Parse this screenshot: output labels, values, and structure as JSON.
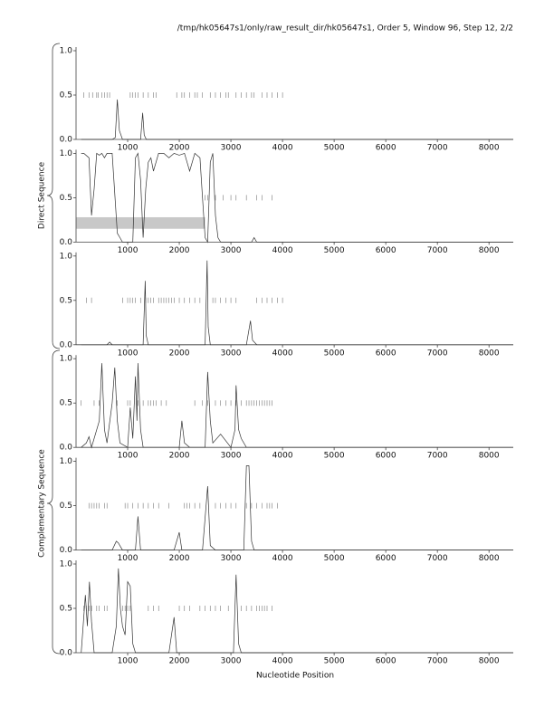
{
  "title": "/tmp/hk05647s1/only/raw_result_dir/hk05647s1, Order 5, Window 96, Step 12, 2/2",
  "x_label": "Nucleotide Position",
  "groups": [
    "Direct Sequence",
    "Complementary Sequence"
  ],
  "chart_data": [
    {
      "type": "line",
      "color": "#333333",
      "xlim": [
        0,
        8470
      ],
      "ylim": [
        0,
        1
      ],
      "xticks": [
        1000,
        2000,
        3000,
        4000,
        5000,
        6000,
        7000,
        8000
      ],
      "yticks": [
        {
          "value": 0,
          "label": "0.0"
        },
        0.5,
        {
          "value": 1,
          "label": "1.0"
        }
      ],
      "x": [
        100,
        700,
        760,
        800,
        840,
        900,
        1250,
        1290,
        1320,
        1360,
        1500,
        2500,
        8470
      ],
      "values": [
        0,
        0,
        0.02,
        0.45,
        0.1,
        0,
        0,
        0.3,
        0.05,
        0,
        0,
        0,
        0
      ],
      "hits": {
        "level": 0.5,
        "x": [
          150,
          250,
          320,
          400,
          430,
          500,
          550,
          600,
          650,
          1050,
          1100,
          1150,
          1200,
          1300,
          1400,
          1500,
          1550,
          1950,
          2050,
          2100,
          2200,
          2300,
          2350,
          2450,
          2600,
          2700,
          2800,
          2900,
          2950,
          3100,
          3200,
          3300,
          3400,
          3450,
          3600,
          3700,
          3800,
          3900,
          4000
        ]
      }
    },
    {
      "type": "line",
      "color": "#333333",
      "xlim": [
        0,
        8470
      ],
      "ylim": [
        0,
        1
      ],
      "xticks": [
        1000,
        2000,
        3000,
        4000,
        5000,
        6000,
        7000,
        8000
      ],
      "yticks": [
        {
          "value": 0,
          "label": "0.0"
        },
        0.5,
        {
          "value": 1,
          "label": "1.0"
        }
      ],
      "x": [
        100,
        150,
        250,
        300,
        350,
        400,
        450,
        500,
        550,
        600,
        700,
        800,
        850,
        900,
        1000,
        1100,
        1150,
        1200,
        1250,
        1300,
        1350,
        1400,
        1450,
        1500,
        1600,
        1700,
        1800,
        1900,
        2000,
        2100,
        2200,
        2300,
        2400,
        2450,
        2500,
        2550,
        2600,
        2650,
        2700,
        2750,
        2800,
        3000,
        3400,
        3450,
        3500,
        8470
      ],
      "values": [
        1,
        1,
        0.95,
        0.3,
        0.6,
        1,
        0.98,
        1,
        0.95,
        1,
        1,
        0.1,
        0.05,
        0,
        0,
        0,
        0.95,
        1,
        0.7,
        0.05,
        0.6,
        0.9,
        0.95,
        0.8,
        1,
        1,
        0.95,
        1,
        0.98,
        1,
        0.8,
        1,
        0.95,
        0.5,
        0.05,
        0,
        0.9,
        1,
        0.3,
        0.05,
        0,
        0,
        0,
        0.05,
        0,
        0
      ],
      "band": {
        "x": [
          0,
          2500
        ],
        "y": [
          0.15,
          0.28
        ],
        "color": "#c8c8c8"
      },
      "hits": {
        "level": 0.5,
        "x": [
          2500,
          2550,
          2700,
          2850,
          3000,
          3100,
          3300,
          3500,
          3600,
          3800
        ]
      }
    },
    {
      "type": "line",
      "color": "#333333",
      "xlim": [
        0,
        8470
      ],
      "ylim": [
        0,
        1
      ],
      "xticks": [
        1000,
        2000,
        3000,
        4000,
        5000,
        6000,
        7000,
        8000
      ],
      "yticks": [
        {
          "value": 0,
          "label": "0.0"
        },
        0.5,
        {
          "value": 1,
          "label": "1.0"
        }
      ],
      "x": [
        100,
        600,
        650,
        700,
        1300,
        1340,
        1360,
        1400,
        2500,
        2540,
        2560,
        2600,
        3300,
        3380,
        3420,
        3500,
        8470
      ],
      "values": [
        0,
        0,
        0.03,
        0,
        0,
        0.72,
        0.1,
        0,
        0,
        0.95,
        0.2,
        0,
        0,
        0.27,
        0.05,
        0,
        0
      ],
      "hits": {
        "level": 0.5,
        "x": [
          200,
          300,
          900,
          1000,
          1050,
          1100,
          1150,
          1250,
          1350,
          1400,
          1450,
          1500,
          1600,
          1650,
          1700,
          1750,
          1800,
          1850,
          1900,
          2000,
          2100,
          2200,
          2300,
          2400,
          2650,
          2700,
          2800,
          2900,
          3000,
          3100,
          3500,
          3600,
          3700,
          3800,
          3900,
          4000
        ]
      }
    },
    {
      "type": "line",
      "color": "#333333",
      "xlim": [
        0,
        8470
      ],
      "ylim": [
        0,
        1
      ],
      "xticks": [
        1000,
        2000,
        3000,
        4000,
        5000,
        6000,
        7000,
        8000
      ],
      "yticks": [
        {
          "value": 0,
          "label": "0.0"
        },
        0.5,
        {
          "value": 1,
          "label": "1.0"
        }
      ],
      "x": [
        100,
        200,
        250,
        300,
        450,
        500,
        550,
        600,
        700,
        750,
        800,
        850,
        1000,
        1050,
        1100,
        1150,
        1180,
        1200,
        1250,
        1300,
        2000,
        2050,
        2100,
        2200,
        2500,
        2550,
        2600,
        2650,
        2800,
        3000,
        3080,
        3100,
        3150,
        3200,
        3300,
        8470
      ],
      "values": [
        0,
        0.05,
        0.12,
        0,
        0.3,
        0.95,
        0.2,
        0.05,
        0.5,
        0.9,
        0.3,
        0.05,
        0,
        0.45,
        0.1,
        0.8,
        0.3,
        0.95,
        0.2,
        0,
        0,
        0.3,
        0.05,
        0,
        0,
        0.85,
        0.3,
        0.05,
        0.15,
        0,
        0.2,
        0.7,
        0.2,
        0.1,
        0,
        0
      ],
      "hits": {
        "level": 0.5,
        "x": [
          100,
          350,
          450,
          800,
          1000,
          1050,
          1200,
          1300,
          1400,
          1450,
          1500,
          1550,
          1650,
          1750,
          2300,
          2450,
          2550,
          2700,
          2800,
          2900,
          3000,
          3100,
          3200,
          3300,
          3350,
          3400,
          3450,
          3500,
          3550,
          3600,
          3650,
          3700,
          3750,
          3800
        ]
      }
    },
    {
      "type": "line",
      "color": "#333333",
      "xlim": [
        0,
        8470
      ],
      "ylim": [
        0,
        1
      ],
      "xticks": [
        1000,
        2000,
        3000,
        4000,
        5000,
        6000,
        7000,
        8000
      ],
      "yticks": [
        {
          "value": 0,
          "label": "0.0"
        },
        0.5,
        {
          "value": 1,
          "label": "1.0"
        }
      ],
      "x": [
        100,
        700,
        780,
        820,
        900,
        1150,
        1200,
        1250,
        1900,
        2000,
        2050,
        2450,
        2550,
        2600,
        2700,
        3250,
        3300,
        3350,
        3400,
        3450,
        8470
      ],
      "values": [
        0,
        0,
        0.1,
        0.08,
        0,
        0,
        0.38,
        0,
        0,
        0.2,
        0,
        0,
        0.72,
        0.05,
        0,
        0,
        0.95,
        0.95,
        0.1,
        0,
        0
      ],
      "hits": {
        "level": 0.5,
        "x": [
          250,
          300,
          350,
          400,
          450,
          550,
          600,
          950,
          1000,
          1100,
          1200,
          1300,
          1400,
          1500,
          1600,
          1800,
          2100,
          2150,
          2200,
          2300,
          2400,
          2700,
          2800,
          2900,
          3000,
          3100,
          3300,
          3400,
          3500,
          3600,
          3700,
          3750,
          3800,
          3900
        ]
      }
    },
    {
      "type": "line",
      "color": "#333333",
      "xlim": [
        0,
        8470
      ],
      "ylim": [
        0,
        1
      ],
      "xticks": [
        1000,
        2000,
        3000,
        4000,
        5000,
        6000,
        7000,
        8000
      ],
      "yticks": [
        {
          "value": 0,
          "label": "0.0"
        },
        0.5,
        {
          "value": 1,
          "label": "1.0"
        }
      ],
      "x": [
        100,
        180,
        220,
        260,
        300,
        350,
        700,
        780,
        820,
        860,
        900,
        950,
        1000,
        1050,
        1100,
        1150,
        1800,
        1900,
        1950,
        2700,
        3050,
        3100,
        3150,
        3200,
        8470
      ],
      "values": [
        0,
        0.65,
        0.3,
        0.8,
        0.35,
        0,
        0,
        0.3,
        0.95,
        0.5,
        0.3,
        0.2,
        0.8,
        0.75,
        0.1,
        0,
        0,
        0.4,
        0,
        0,
        0,
        0.88,
        0.1,
        0,
        0
      ],
      "hits": {
        "level": 0.5,
        "x": [
          150,
          200,
          250,
          300,
          400,
          450,
          550,
          600,
          900,
          950,
          1000,
          1050,
          1400,
          1500,
          1600,
          2000,
          2100,
          2200,
          2400,
          2500,
          2600,
          2700,
          2800,
          2950,
          3200,
          3300,
          3400,
          3500,
          3550,
          3600,
          3650,
          3700,
          3800
        ]
      }
    }
  ]
}
